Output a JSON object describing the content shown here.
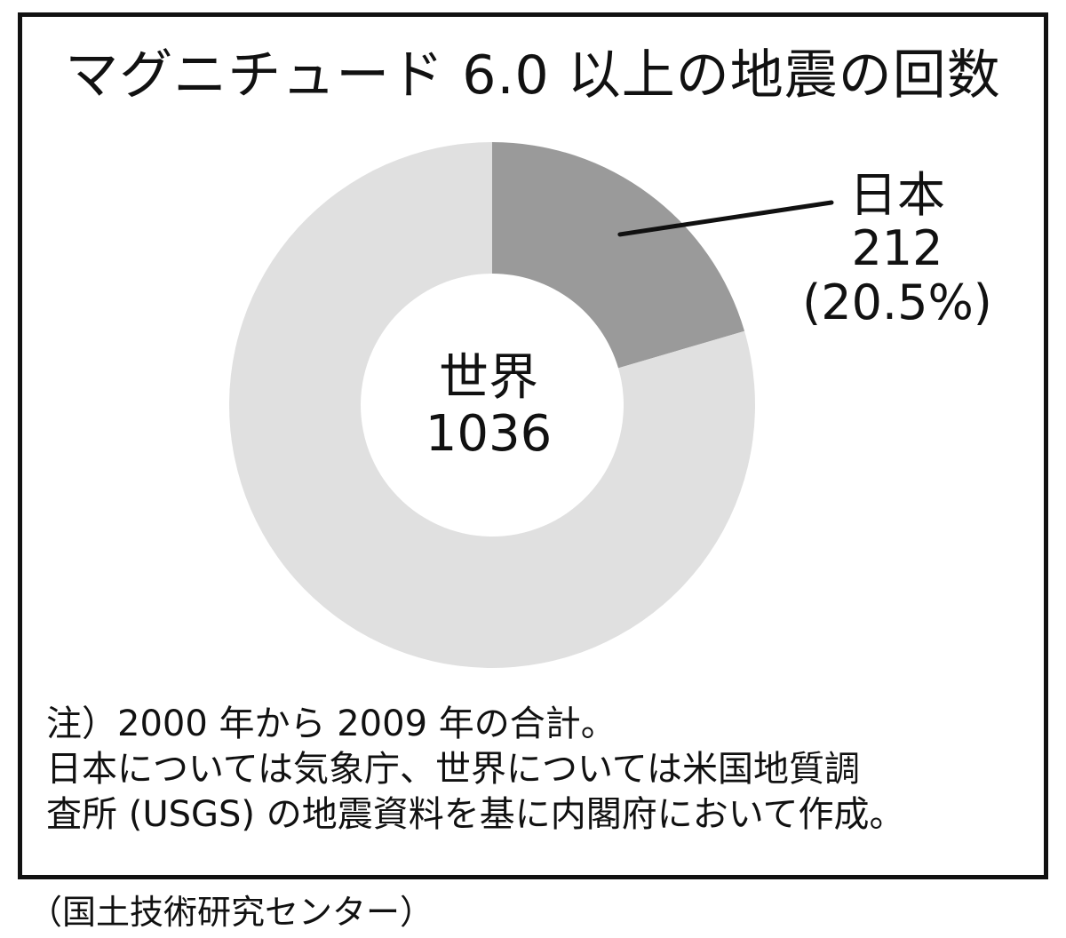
{
  "chart_data": {
    "type": "pie",
    "title": "マグニチュード 6.0 以上の地震の回数",
    "total": {
      "label": "世界",
      "value": 1036
    },
    "slices": [
      {
        "label": "日本",
        "value": 212,
        "value_text": "212",
        "percent_text": "(20.5%)",
        "color": "#9a9a9a"
      },
      {
        "label": "",
        "value": 824,
        "color": "#e0e0e0"
      }
    ],
    "notes": [
      "注）2000 年から 2009 年の合計。",
      "日本については気象庁、世界については米国地質調",
      "査所 (USGS) の地震資料を基に内閣府において作成。"
    ]
  },
  "source": "（国土技術研究センター）"
}
